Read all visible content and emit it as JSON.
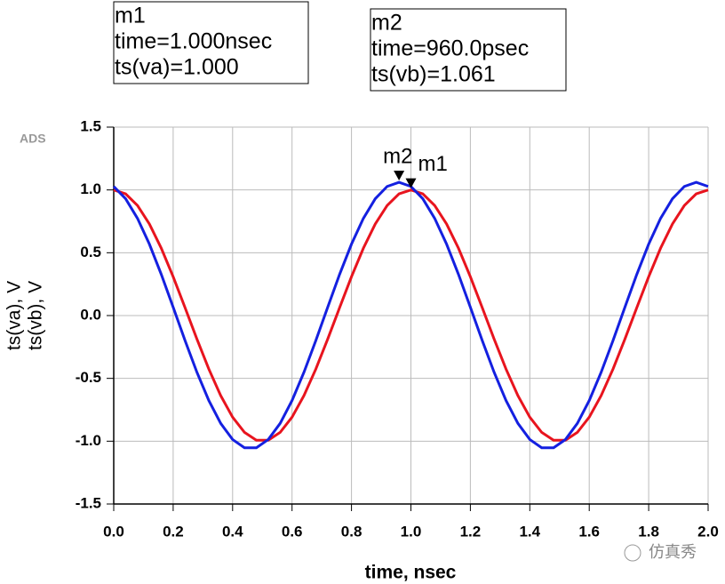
{
  "chart_data": {
    "type": "line",
    "ads_label": "ADS",
    "x_label": "time, nsec",
    "x": [
      0,
      0.04,
      0.08,
      0.12,
      0.16,
      0.2,
      0.24,
      0.28,
      0.32,
      0.36,
      0.4,
      0.44,
      0.48,
      0.52,
      0.56,
      0.6,
      0.64,
      0.68,
      0.72,
      0.76,
      0.8,
      0.84,
      0.88,
      0.92,
      0.96,
      1.0,
      1.04,
      1.08,
      1.12,
      1.16,
      1.2,
      1.24,
      1.28,
      1.32,
      1.36,
      1.4,
      1.44,
      1.48,
      1.52,
      1.56,
      1.6,
      1.64,
      1.68,
      1.72,
      1.76,
      1.8,
      1.84,
      1.88,
      1.92,
      1.96,
      2.0
    ],
    "series": [
      {
        "name": "ts(va), V",
        "color": "#e8141e",
        "values": [
          1,
          0.9686,
          0.8763,
          0.729,
          0.5358,
          0.309,
          0.0628,
          -0.1874,
          -0.4258,
          -0.6374,
          -0.809,
          -0.9298,
          -0.9921,
          -0.9921,
          -0.9298,
          -0.809,
          -0.6374,
          -0.4258,
          -0.1874,
          0.0628,
          0.309,
          0.5358,
          0.729,
          0.8763,
          0.9686,
          1,
          0.9686,
          0.8763,
          0.729,
          0.5358,
          0.309,
          0.0628,
          -0.1874,
          -0.4258,
          -0.6374,
          -0.809,
          -0.9298,
          -0.9921,
          -0.9921,
          -0.9298,
          -0.809,
          -0.6374,
          -0.4258,
          -0.1874,
          0.0628,
          0.309,
          0.5358,
          0.729,
          0.8763,
          0.9686,
          1
        ]
      },
      {
        "name": "ts(vb), V",
        "color": "#1420e0",
        "values": [
          1.0277,
          0.9298,
          0.7735,
          0.5685,
          0.3278,
          0.0666,
          -0.1988,
          -0.4518,
          -0.6763,
          -0.8583,
          -0.9865,
          -1.0526,
          -1.0526,
          -0.9865,
          -0.8583,
          -0.6763,
          -0.4518,
          -0.1988,
          0.0666,
          0.3278,
          0.5685,
          0.7735,
          0.9298,
          1.0277,
          1.061,
          1.0277,
          0.9298,
          0.7735,
          0.5685,
          0.3278,
          0.0666,
          -0.1988,
          -0.4518,
          -0.6763,
          -0.8583,
          -0.9865,
          -1.0526,
          -1.0526,
          -0.9865,
          -0.8583,
          -0.6763,
          -0.4518,
          -0.1988,
          0.0666,
          0.3278,
          0.5685,
          0.7735,
          0.9298,
          1.0277,
          1.061,
          1.0277
        ]
      }
    ],
    "xlim": [
      0,
      2.0
    ],
    "ylim": [
      -1.5,
      1.5
    ],
    "xticks": [
      {
        "value": 0,
        "label": "0.0"
      },
      0.2,
      0.4,
      0.6,
      0.8,
      {
        "value": 1,
        "label": "1.0"
      },
      1.2,
      1.4,
      1.6,
      1.8,
      {
        "value": 2,
        "label": "2.0"
      }
    ],
    "yticks": [
      -1.5,
      {
        "value": -1,
        "label": "-1.0"
      },
      -0.5,
      {
        "value": 0,
        "label": "0.0"
      },
      0.5,
      {
        "value": 1,
        "label": "1.0"
      },
      1.5
    ],
    "grid": true,
    "markers": [
      {
        "name": "m1",
        "x": 1.0,
        "y": 1.0,
        "lines": [
          "m1",
          "time=1.000nsec",
          "ts(va)=1.000"
        ]
      },
      {
        "name": "m2",
        "x": 0.96,
        "y": 1.061,
        "lines": [
          "m2",
          "time=960.0psec",
          "ts(vb)=1.061"
        ]
      }
    ],
    "watermark": "仿真秀"
  }
}
